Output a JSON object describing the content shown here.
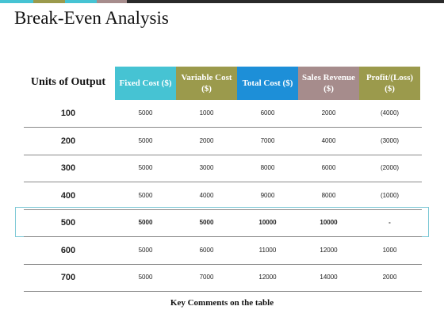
{
  "title": "Break-Even Analysis",
  "colors": {
    "teal": "#46c3d3",
    "olive": "#9b9a4c",
    "blue": "#1d8fd8",
    "mauve": "#a68c8c",
    "border": "#7fc9d6"
  },
  "table": {
    "units_header": "Units of Output",
    "columns": [
      "Fixed Cost ($)",
      "Variable Cost ($)",
      "Total Cost ($)",
      "Sales Revenue ($)",
      "Profit/(Loss) ($)"
    ],
    "rows": [
      {
        "units": "100",
        "values": [
          "5000",
          "1000",
          "6000",
          "2000",
          "(4000)"
        ]
      },
      {
        "units": "200",
        "values": [
          "5000",
          "2000",
          "7000",
          "4000",
          "(3000)"
        ]
      },
      {
        "units": "300",
        "values": [
          "5000",
          "3000",
          "8000",
          "6000",
          "(2000)"
        ]
      },
      {
        "units": "400",
        "values": [
          "5000",
          "4000",
          "9000",
          "8000",
          "(1000)"
        ]
      },
      {
        "units": "500",
        "values": [
          "5000",
          "5000",
          "10000",
          "10000",
          "-"
        ]
      },
      {
        "units": "600",
        "values": [
          "5000",
          "6000",
          "11000",
          "12000",
          "1000"
        ]
      },
      {
        "units": "700",
        "values": [
          "5000",
          "7000",
          "12000",
          "14000",
          "2000"
        ]
      }
    ],
    "highlight_row": "500"
  },
  "footer": "Key Comments on the table"
}
